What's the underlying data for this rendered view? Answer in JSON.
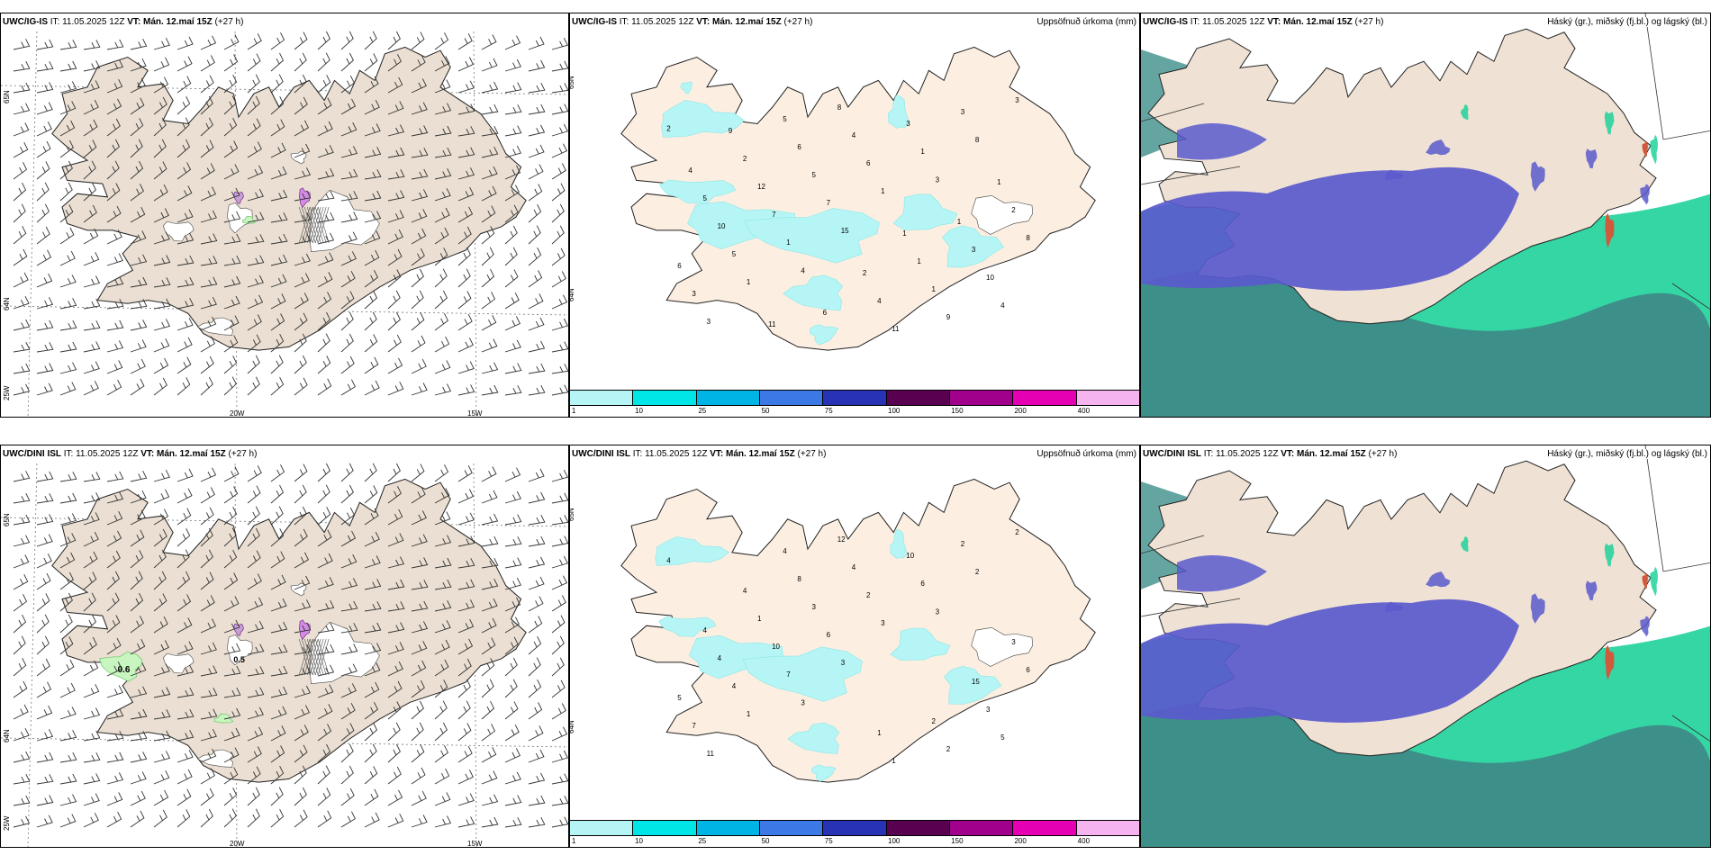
{
  "panels": {
    "p1": {
      "model": "UWC/IG-IS",
      "it": "IT: 11.05.2025 12Z",
      "vt": "VT: Mán. 12.maí 15Z",
      "lead": "(+27 h)",
      "right": ""
    },
    "p2": {
      "model": "UWC/IG-IS",
      "it": "IT: 11.05.2025 12Z",
      "vt": "VT: Mán. 12.maí 15Z",
      "lead": "(+27 h)",
      "right": "Uppsöfnuð úrkoma (mm)"
    },
    "p3": {
      "model": "UWC/IG-IS",
      "it": "IT: 11.05.2025 12Z",
      "vt": "VT: Mán. 12.maí 15Z",
      "lead": "(+27 h)",
      "right": "Háský (gr.), miðský (fj.bl.) og lágský (bl.)"
    },
    "p4": {
      "model": "UWC/DINI ISL",
      "it": "IT: 11.05.2025 12Z",
      "vt": "VT: Mán. 12.maí 15Z",
      "lead": "(+27 h)",
      "right": ""
    },
    "p5": {
      "model": "UWC/DINI ISL",
      "it": "IT: 11.05.2025 12Z",
      "vt": "VT: Mán. 12.maí 15Z",
      "lead": "(+27 h)",
      "right": "Uppsöfnuð úrkoma (mm)"
    },
    "p6": {
      "model": "UWC/DINI ISL",
      "it": "IT: 11.05.2025 12Z",
      "vt": "VT: Mán. 12.maí 15Z",
      "lead": "(+27 h)",
      "right": "Háský (gr.), miðský (fj.bl.) og lágský (bl.)"
    }
  },
  "axes": {
    "lon_20w": "20W",
    "lon_15w": "15W",
    "lat_65n": "65N",
    "lat_64n": "64N",
    "lat_63n": "63N",
    "lon_25w": "25W"
  },
  "legend": {
    "labels": [
      "1",
      "10",
      "25",
      "50",
      "75",
      "100",
      "150",
      "200",
      "400"
    ],
    "colors": [
      "#b5f5f5",
      "#00e6e6",
      "#00b4e6",
      "#3c78e6",
      "#2832b4",
      "#5a0050",
      "#a0008c",
      "#e600b4",
      "#f5b4f0"
    ]
  },
  "top_precip_labels": [
    "2",
    "4",
    "3",
    "3",
    "15",
    "8",
    "1",
    "1",
    "3",
    "1",
    "1",
    "3",
    "7",
    "3",
    "5",
    "6",
    "4",
    "7",
    "3",
    "6",
    "5",
    "9",
    "10",
    "4",
    "10",
    "12",
    "11",
    "8",
    "6",
    "1",
    "5",
    "8",
    "3",
    "2",
    "4",
    "2",
    "5",
    "1",
    "4",
    "6",
    "1",
    "9",
    "2",
    "1",
    "11",
    "1"
  ],
  "bottom_precip_labels": [
    "4",
    "3",
    "3",
    "11",
    "3",
    "2",
    "1",
    "3",
    "2",
    "7",
    "6",
    "7",
    "6",
    "2",
    "4",
    "2",
    "5",
    "10",
    "10",
    "5",
    "3",
    "2",
    "4",
    "4",
    "3",
    "1",
    "1",
    "6",
    "8",
    "2",
    "4",
    "12",
    "15",
    "4",
    "1",
    "3",
    "4"
  ],
  "wind_labels": {
    "w1": "0.6",
    "w2": "0.5"
  },
  "colors": {
    "land_wind": "#eadfd2",
    "land_precip": "#fcefe2",
    "cloud_blue": "#5a5acd",
    "cloud_green": "#1ed29a",
    "cloud_teal": "#3d8f8a",
    "cloud_red": "#d05a3c",
    "glacier": "#ffffff"
  }
}
